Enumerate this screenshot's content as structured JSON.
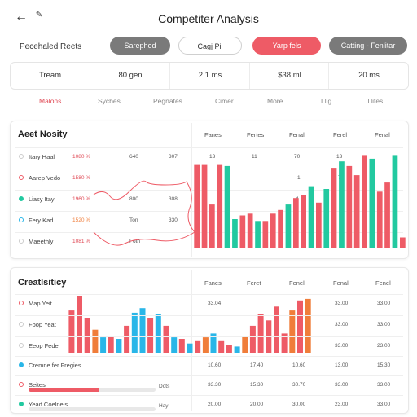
{
  "header": {
    "title": "Competiter Analysis"
  },
  "toolbar": {
    "saved_label": "Pecehaled Reets",
    "chips": [
      {
        "label": "Sarephed",
        "style": "grey"
      },
      {
        "label": "Cagj Pil",
        "style": "outline"
      },
      {
        "label": "Yarp fels",
        "style": "red"
      },
      {
        "label": "Catting - Fenlitar",
        "style": "grey"
      }
    ]
  },
  "stats": [
    "Tream",
    "80 gen",
    "2.1 ms",
    "$38 ml",
    "20 ms"
  ],
  "tabs": [
    {
      "label": "Malons",
      "active": true
    },
    {
      "label": "Sycbes",
      "active": false
    },
    {
      "label": "Pegnates",
      "active": false
    },
    {
      "label": "Cimer",
      "active": false
    },
    {
      "label": "More",
      "active": false
    },
    {
      "label": "Llig",
      "active": false
    },
    {
      "label": "Tlites",
      "active": false
    }
  ],
  "card1": {
    "title": "Aeet Nosity",
    "columns": [
      "Fanes",
      "Fertes",
      "Fenal",
      "Ferel",
      "Fenal"
    ],
    "col_values_row1": [
      "13",
      "11",
      "70",
      "13",
      ""
    ],
    "col_values_row2": [
      "",
      "",
      "1",
      "7",
      ""
    ],
    "col_values_row3": [
      "",
      "",
      "4",
      "",
      ""
    ],
    "rows": [
      {
        "label": "Itary Haal",
        "dot": "#cccccc",
        "v1": "1080 %",
        "v2": "640",
        "v3": "307"
      },
      {
        "label": "Aarep Vedo",
        "dot": "#ee5b66",
        "v1": "1580 %",
        "v2": "",
        "v3": ""
      },
      {
        "label": "Liasy Itay",
        "dot": "#22c9a0",
        "v1": "1960 %",
        "v2": "800",
        "v3": "308"
      },
      {
        "label": "Fery Kad",
        "dot": "#29b6e8",
        "v1": "1520 %",
        "v2": "Ton",
        "v3": "330"
      },
      {
        "label": "Maeethly",
        "dot": "#cccccc",
        "v1": "1081 %",
        "v2": "Fotn",
        "v3": ""
      }
    ]
  },
  "card2": {
    "title": "Creatlsiticy",
    "columns": [
      "Fanes",
      "Feret",
      "Fenel",
      "Fenal",
      "Fenel"
    ],
    "num_rows": [
      [
        "33.04",
        "",
        "",
        "33.00",
        "33.00"
      ],
      [
        "",
        "",
        "",
        "33.00",
        "33.00"
      ],
      [
        "",
        "",
        "",
        "33.00",
        "23.00"
      ],
      [
        "10.60",
        "17.40",
        "10.60",
        "13.00",
        "15.30"
      ],
      [
        "33.30",
        "15.30",
        "30.70",
        "33.00",
        "33.00"
      ],
      [
        "20.00",
        "20.00",
        "30.00",
        "23.00",
        "33.00"
      ]
    ],
    "rows": [
      {
        "label": "Map Yeit",
        "dot": "#ee5b66"
      },
      {
        "label": "Foop Yeat",
        "dot": "#cccccc"
      },
      {
        "label": "Eeop Fede",
        "dot": "#cccccc"
      },
      {
        "label": "Cremne fer Fregies",
        "dot": "#29b6e8"
      },
      {
        "label": "Seites",
        "dot": "#ee5b66",
        "progress": 0.55,
        "note": "Dots"
      },
      {
        "label": "Yead Coelnels",
        "dot": "#22c9a0",
        "progress": 0.0,
        "note": "Hay"
      }
    ]
  },
  "chart_data": [
    {
      "type": "bar",
      "series": [
        {
          "values": [
            92,
            92,
            48,
            92,
            90,
            32,
            36,
            38,
            30,
            30,
            38,
            42,
            48,
            55,
            58,
            68,
            50,
            65,
            88,
            95,
            90,
            80,
            102,
            98,
            62,
            72,
            102,
            12
          ],
          "colors": [
            "#ee5b66",
            "#ee5b66",
            "#ee5b66",
            "#ee5b66",
            "#22c9a0",
            "#22c9a0",
            "#ee5b66",
            "#ee5b66",
            "#22c9a0",
            "#ee5b66",
            "#ee5b66",
            "#ee5b66",
            "#22c9a0",
            "#ee5b66",
            "#ee5b66",
            "#22c9a0",
            "#ee5b66",
            "#22c9a0",
            "#ee5b66",
            "#22c9a0",
            "#ee5b66",
            "#ee5b66",
            "#ee5b66",
            "#22c9a0",
            "#ee5b66",
            "#ee5b66",
            "#22c9a0",
            "#ee5b66"
          ]
        }
      ]
    },
    {
      "type": "bar",
      "series": [
        {
          "values": [
            55,
            85,
            45,
            30,
            20,
            22,
            18,
            35,
            52,
            58,
            45,
            50,
            35,
            20,
            18,
            12,
            15,
            20,
            25,
            15,
            10,
            8,
            22,
            35,
            50,
            42,
            60,
            25,
            55,
            68,
            70
          ],
          "colors": [
            "#ee5b66",
            "#ee5b66",
            "#ee5b66",
            "#f07d3a",
            "#29b6e8",
            "#ee5b66",
            "#29b6e8",
            "#ee5b66",
            "#29b6e8",
            "#29b6e8",
            "#ee5b66",
            "#29b6e8",
            "#ee5b66",
            "#29b6e8",
            "#ee5b66",
            "#29b6e8",
            "#ee5b66",
            "#f07d3a",
            "#29b6e8",
            "#ee5b66",
            "#ee5b66",
            "#29b6e8",
            "#f07d3a",
            "#ee5b66",
            "#ee5b66",
            "#ee5b66",
            "#ee5b66",
            "#ee5b66",
            "#f07d3a",
            "#ee5b66",
            "#f07d3a"
          ]
        }
      ]
    }
  ]
}
